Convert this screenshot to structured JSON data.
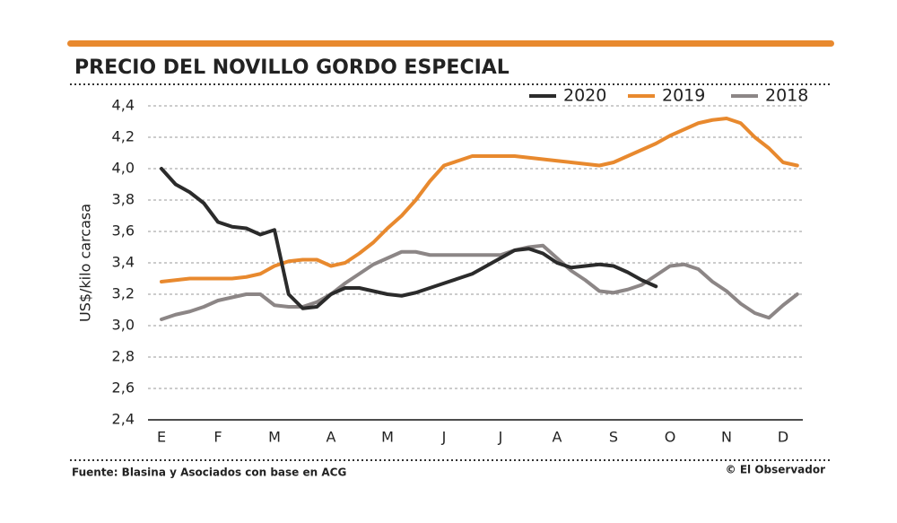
{
  "chart_data": {
    "type": "line",
    "title": "PRECIO DEL NOVILLO GORDO ESPECIAL",
    "y_label": "US$/kilo carcasa",
    "source": "Fuente: Blasina y Asociados con base en ACG",
    "credit": "© El Observador",
    "categories": [
      "E",
      null,
      null,
      null,
      "F",
      null,
      null,
      null,
      "M",
      null,
      null,
      null,
      "A",
      null,
      null,
      null,
      "M",
      null,
      null,
      null,
      "J",
      null,
      null,
      null,
      "J",
      null,
      null,
      null,
      "A",
      null,
      null,
      null,
      "S",
      null,
      null,
      null,
      "O",
      null,
      null,
      null,
      "N",
      null,
      null,
      null,
      "D",
      null
    ],
    "series": [
      {
        "name": "2020",
        "color": "#2b2b2b",
        "values": [
          4.0,
          3.9,
          3.85,
          3.78,
          3.66,
          3.63,
          3.62,
          3.58,
          3.61,
          3.2,
          3.11,
          3.12,
          3.2,
          3.24,
          3.24,
          3.22,
          3.2,
          3.19,
          3.21,
          3.24,
          3.27,
          3.3,
          3.33,
          3.38,
          3.43,
          3.48,
          3.49,
          3.46,
          3.4,
          3.37,
          3.38,
          3.39,
          3.38,
          3.34,
          3.29,
          3.25,
          null,
          null,
          null,
          null,
          null,
          null,
          null,
          null,
          null,
          null
        ]
      },
      {
        "name": "2019",
        "color": "#e8892e",
        "values": [
          3.28,
          3.29,
          3.3,
          3.3,
          3.3,
          3.3,
          3.31,
          3.33,
          3.38,
          3.41,
          3.42,
          3.42,
          3.38,
          3.4,
          3.46,
          3.53,
          3.62,
          3.7,
          3.8,
          3.92,
          4.02,
          4.05,
          4.08,
          4.08,
          4.08,
          4.08,
          4.07,
          4.06,
          4.05,
          4.04,
          4.03,
          4.02,
          4.04,
          4.08,
          4.12,
          4.16,
          4.21,
          4.25,
          4.29,
          4.31,
          4.32,
          4.29,
          4.2,
          4.13,
          4.04,
          4.02
        ]
      },
      {
        "name": "2018",
        "color": "#8c8686",
        "values": [
          3.04,
          3.07,
          3.09,
          3.12,
          3.16,
          3.18,
          3.2,
          3.2,
          3.13,
          3.12,
          3.12,
          3.15,
          3.2,
          3.27,
          3.33,
          3.39,
          3.43,
          3.47,
          3.47,
          3.45,
          3.45,
          3.45,
          3.45,
          3.45,
          3.45,
          3.48,
          3.5,
          3.51,
          3.43,
          3.35,
          3.29,
          3.22,
          3.21,
          3.23,
          3.26,
          3.32,
          3.38,
          3.39,
          3.36,
          3.28,
          3.22,
          3.14,
          3.08,
          3.05,
          3.13,
          3.2
        ]
      }
    ],
    "ylim": [
      2.4,
      4.4
    ],
    "yticks": [
      {
        "value": 2.4,
        "label": "2,4"
      },
      {
        "value": 2.6,
        "label": "2,6"
      },
      {
        "value": 2.8,
        "label": "2,8"
      },
      {
        "value": 3.0,
        "label": "3,0"
      },
      {
        "value": 3.2,
        "label": "3,2"
      },
      {
        "value": 3.4,
        "label": "3,4"
      },
      {
        "value": 3.6,
        "label": "3,6"
      },
      {
        "value": 3.8,
        "label": "3,8"
      },
      {
        "value": 4.0,
        "label": "4,0"
      },
      {
        "value": 4.2,
        "label": "4,2"
      },
      {
        "value": 4.4,
        "label": "4,4"
      }
    ],
    "grid": true,
    "legend": "top-right"
  }
}
